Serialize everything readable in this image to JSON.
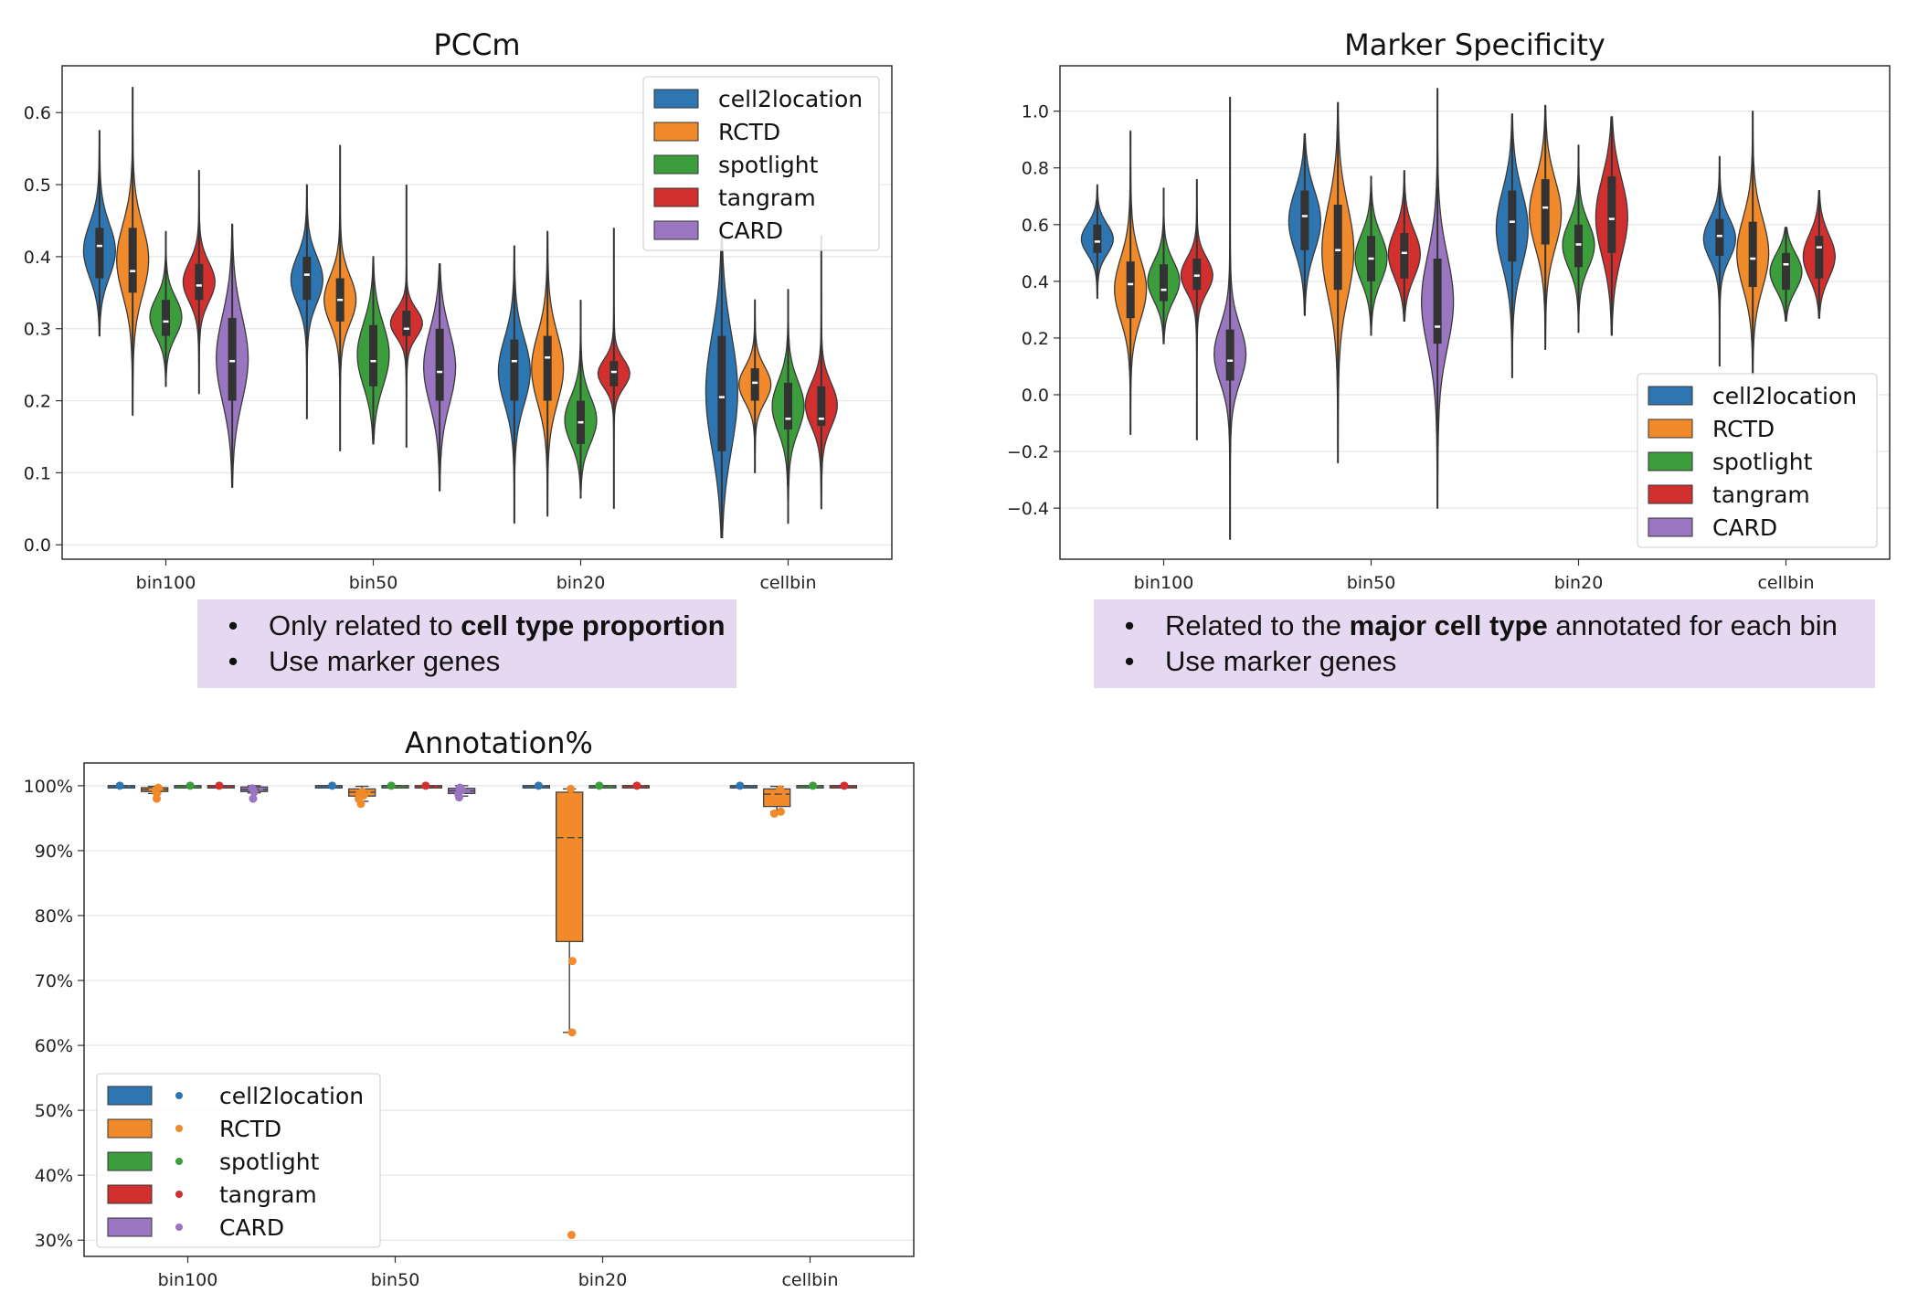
{
  "colors": {
    "cell2location": "#2e76b2",
    "RCTD": "#f08a2a",
    "spotlight": "#3c9d3c",
    "tangram": "#d22f2f",
    "CARD": "#9a75c0",
    "note_bg": "#e6d8f1"
  },
  "notes": {
    "left": {
      "line1_prefix": "Only related to ",
      "line1_bold": "cell type proportion",
      "line1_suffix": "",
      "line2": "Use marker genes",
      "bullet": "•"
    },
    "right": {
      "line1_prefix": "Related to the ",
      "line1_bold": "major cell type",
      "line1_suffix": " annotated for each bin",
      "line2": "Use marker genes",
      "bullet": "•"
    }
  },
  "chart_data": [
    {
      "id": "pccm",
      "type": "violin",
      "title": "PCCm",
      "categories": [
        "bin100",
        "bin50",
        "bin20",
        "cellbin"
      ],
      "yticks": [
        0.0,
        0.1,
        0.2,
        0.3,
        0.4,
        0.5,
        0.6
      ],
      "ytick_labels": [
        "0.0",
        "0.1",
        "0.2",
        "0.3",
        "0.4",
        "0.5",
        "0.6"
      ],
      "ylim": [
        -0.02,
        0.665
      ],
      "grid": true,
      "legend_position": "top-right",
      "series": [
        {
          "name": "cell2location",
          "stats": [
            {
              "min": 0.29,
              "q1": 0.37,
              "median": 0.415,
              "q3": 0.44,
              "max": 0.575
            },
            {
              "min": 0.175,
              "q1": 0.34,
              "median": 0.375,
              "q3": 0.4,
              "max": 0.5
            },
            {
              "min": 0.03,
              "q1": 0.2,
              "median": 0.255,
              "q3": 0.285,
              "max": 0.415
            },
            {
              "min": 0.01,
              "q1": 0.13,
              "median": 0.205,
              "q3": 0.29,
              "max": 0.43
            }
          ]
        },
        {
          "name": "RCTD",
          "stats": [
            {
              "min": 0.18,
              "q1": 0.35,
              "median": 0.38,
              "q3": 0.44,
              "max": 0.635
            },
            {
              "min": 0.13,
              "q1": 0.31,
              "median": 0.34,
              "q3": 0.37,
              "max": 0.555
            },
            {
              "min": 0.04,
              "q1": 0.2,
              "median": 0.26,
              "q3": 0.29,
              "max": 0.435
            },
            {
              "min": 0.1,
              "q1": 0.2,
              "median": 0.225,
              "q3": 0.245,
              "max": 0.34
            }
          ]
        },
        {
          "name": "spotlight",
          "stats": [
            {
              "min": 0.22,
              "q1": 0.29,
              "median": 0.31,
              "q3": 0.34,
              "max": 0.435
            },
            {
              "min": 0.14,
              "q1": 0.22,
              "median": 0.255,
              "q3": 0.305,
              "max": 0.4
            },
            {
              "min": 0.065,
              "q1": 0.14,
              "median": 0.17,
              "q3": 0.2,
              "max": 0.34
            },
            {
              "min": 0.03,
              "q1": 0.16,
              "median": 0.175,
              "q3": 0.225,
              "max": 0.355
            }
          ]
        },
        {
          "name": "tangram",
          "stats": [
            {
              "min": 0.21,
              "q1": 0.34,
              "median": 0.36,
              "q3": 0.39,
              "max": 0.52
            },
            {
              "min": 0.135,
              "q1": 0.29,
              "median": 0.3,
              "q3": 0.325,
              "max": 0.5
            },
            {
              "min": 0.05,
              "q1": 0.22,
              "median": 0.24,
              "q3": 0.255,
              "max": 0.44
            },
            {
              "min": 0.05,
              "q1": 0.165,
              "median": 0.175,
              "q3": 0.22,
              "max": 0.43
            }
          ]
        },
        {
          "name": "CARD",
          "stats": [
            {
              "min": 0.08,
              "q1": 0.2,
              "median": 0.255,
              "q3": 0.315,
              "max": 0.445
            },
            {
              "min": 0.075,
              "q1": 0.2,
              "median": 0.24,
              "q3": 0.3,
              "max": 0.39
            },
            null,
            null
          ]
        }
      ]
    },
    {
      "id": "marker",
      "type": "violin",
      "title": "Marker Specificity",
      "categories": [
        "bin100",
        "bin50",
        "bin20",
        "cellbin"
      ],
      "yticks": [
        -0.4,
        -0.2,
        0.0,
        0.2,
        0.4,
        0.6,
        0.8,
        1.0
      ],
      "ytick_labels": [
        "−0.4",
        "−0.2",
        "0.0",
        "0.2",
        "0.4",
        "0.6",
        "0.8",
        "1.0"
      ],
      "ylim": [
        -0.58,
        1.16
      ],
      "grid": true,
      "legend_position": "bottom-right",
      "series": [
        {
          "name": "cell2location",
          "stats": [
            {
              "min": 0.34,
              "q1": 0.5,
              "median": 0.54,
              "q3": 0.6,
              "max": 0.74
            },
            {
              "min": 0.28,
              "q1": 0.51,
              "median": 0.63,
              "q3": 0.72,
              "max": 0.92
            },
            {
              "min": 0.06,
              "q1": 0.47,
              "median": 0.61,
              "q3": 0.72,
              "max": 0.99
            },
            {
              "min": 0.1,
              "q1": 0.49,
              "median": 0.56,
              "q3": 0.62,
              "max": 0.84
            }
          ]
        },
        {
          "name": "RCTD",
          "stats": [
            {
              "min": -0.14,
              "q1": 0.27,
              "median": 0.39,
              "q3": 0.47,
              "max": 0.93
            },
            {
              "min": -0.24,
              "q1": 0.37,
              "median": 0.51,
              "q3": 0.67,
              "max": 1.03
            },
            {
              "min": 0.16,
              "q1": 0.53,
              "median": 0.66,
              "q3": 0.76,
              "max": 1.02
            },
            {
              "min": 0.07,
              "q1": 0.38,
              "median": 0.48,
              "q3": 0.61,
              "max": 1.0
            }
          ]
        },
        {
          "name": "spotlight",
          "stats": [
            {
              "min": 0.18,
              "q1": 0.33,
              "median": 0.37,
              "q3": 0.46,
              "max": 0.73
            },
            {
              "min": 0.21,
              "q1": 0.4,
              "median": 0.48,
              "q3": 0.56,
              "max": 0.77
            },
            {
              "min": 0.22,
              "q1": 0.45,
              "median": 0.53,
              "q3": 0.6,
              "max": 0.88
            },
            {
              "min": 0.26,
              "q1": 0.37,
              "median": 0.46,
              "q3": 0.5,
              "max": 0.59
            }
          ]
        },
        {
          "name": "tangram",
          "stats": [
            {
              "min": -0.16,
              "q1": 0.37,
              "median": 0.42,
              "q3": 0.48,
              "max": 0.76
            },
            {
              "min": 0.26,
              "q1": 0.41,
              "median": 0.5,
              "q3": 0.57,
              "max": 0.79
            },
            {
              "min": 0.21,
              "q1": 0.5,
              "median": 0.62,
              "q3": 0.77,
              "max": 0.98
            },
            {
              "min": 0.27,
              "q1": 0.41,
              "median": 0.52,
              "q3": 0.56,
              "max": 0.72
            }
          ]
        },
        {
          "name": "CARD",
          "stats": [
            {
              "min": -0.51,
              "q1": 0.05,
              "median": 0.12,
              "q3": 0.23,
              "max": 1.05
            },
            {
              "min": -0.4,
              "q1": 0.18,
              "median": 0.24,
              "q3": 0.48,
              "max": 1.08
            },
            null,
            null
          ]
        }
      ]
    },
    {
      "id": "annotation",
      "type": "box",
      "title": "Annotation%",
      "categories": [
        "bin100",
        "bin50",
        "bin20",
        "cellbin"
      ],
      "yticks": [
        30,
        40,
        50,
        60,
        70,
        80,
        90,
        100
      ],
      "ytick_labels": [
        "30%",
        "40%",
        "50%",
        "60%",
        "70%",
        "80%",
        "90%",
        "100%"
      ],
      "ylim": [
        27.5,
        103.5
      ],
      "grid": true,
      "legend_position": "bottom-left",
      "series": [
        {
          "name": "cell2location",
          "stats": [
            {
              "min": 100,
              "q1": 100,
              "median": 100,
              "q3": 100,
              "max": 100,
              "points": [
                100
              ]
            },
            {
              "min": 100,
              "q1": 100,
              "median": 100,
              "q3": 100,
              "max": 100,
              "points": [
                100
              ]
            },
            {
              "min": 100,
              "q1": 100,
              "median": 100,
              "q3": 100,
              "max": 100,
              "points": [
                100
              ]
            },
            {
              "min": 100,
              "q1": 100,
              "median": 100,
              "q3": 100,
              "max": 100,
              "points": [
                100
              ]
            }
          ]
        },
        {
          "name": "RCTD",
          "stats": [
            {
              "min": 98.8,
              "q1": 99.1,
              "median": 99.4,
              "q3": 99.7,
              "max": 99.9,
              "points": [
                98.0,
                98.8,
                99.3,
                99.7
              ]
            },
            {
              "min": 97.6,
              "q1": 98.4,
              "median": 99.0,
              "q3": 99.5,
              "max": 99.9,
              "points": [
                97.2,
                98.0,
                98.5,
                99.1
              ]
            },
            {
              "min": 62,
              "q1": 76,
              "median": 92,
              "q3": 99,
              "max": 99.5,
              "points": [
                99.5,
                73,
                62,
                30.8
              ]
            },
            {
              "min": 96,
              "q1": 96.8,
              "median": 98.7,
              "q3": 99.5,
              "max": 99.9,
              "points": [
                95.7,
                96.0,
                99.4
              ]
            }
          ]
        },
        {
          "name": "spotlight",
          "stats": [
            {
              "min": 100,
              "q1": 100,
              "median": 100,
              "q3": 100,
              "max": 100,
              "points": [
                100
              ]
            },
            {
              "min": 100,
              "q1": 100,
              "median": 100,
              "q3": 100,
              "max": 100,
              "points": [
                100
              ]
            },
            {
              "min": 100,
              "q1": 100,
              "median": 100,
              "q3": 100,
              "max": 100,
              "points": [
                100
              ]
            },
            {
              "min": 100,
              "q1": 100,
              "median": 100,
              "q3": 100,
              "max": 100,
              "points": [
                100
              ]
            }
          ]
        },
        {
          "name": "tangram",
          "stats": [
            {
              "min": 100,
              "q1": 100,
              "median": 100,
              "q3": 100,
              "max": 100,
              "points": [
                100
              ]
            },
            {
              "min": 100,
              "q1": 100,
              "median": 100,
              "q3": 100,
              "max": 100,
              "points": [
                100
              ]
            },
            {
              "min": 100,
              "q1": 100,
              "median": 100,
              "q3": 100,
              "max": 100,
              "points": [
                100
              ]
            },
            {
              "min": 100,
              "q1": 100,
              "median": 100,
              "q3": 100,
              "max": 100,
              "points": [
                100
              ]
            }
          ]
        },
        {
          "name": "CARD",
          "stats": [
            {
              "min": 98.9,
              "q1": 99.1,
              "median": 99.4,
              "q3": 99.8,
              "max": 100,
              "points": [
                98.0,
                99.0,
                99.6
              ]
            },
            {
              "min": 98.4,
              "q1": 98.8,
              "median": 99.2,
              "q3": 99.6,
              "max": 100,
              "points": [
                98.2,
                98.7,
                99.3,
                99.7
              ]
            },
            null,
            null
          ]
        }
      ]
    }
  ]
}
